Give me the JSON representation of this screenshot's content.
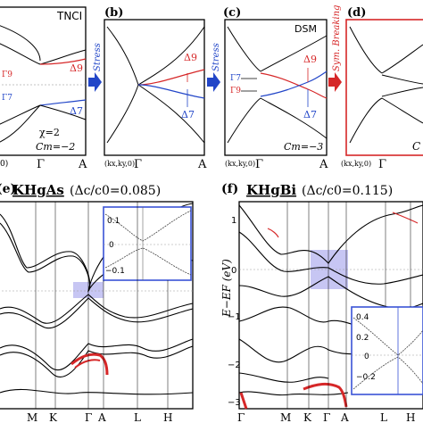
{
  "colors": {
    "red": "#d62728",
    "blue": "#2246c8",
    "box_fill": "#b9b8f0",
    "inset": "#3a53d6"
  },
  "top": {
    "panel_a": {
      "tag": "TNCI",
      "chi": "χ=2",
      "cm": "Cm=−2",
      "d9": "Δ9",
      "d7": "Δ7",
      "gamma9": "Γ9",
      "gamma7": "Γ7",
      "x_gamma": "Γ",
      "x_a": "A",
      "x_k": "0)"
    },
    "arrow_1": "Stress",
    "panel_b": {
      "label": "(b)",
      "d9": "Δ9",
      "d7": "Δ7",
      "x_k": "(kx,ky,0)",
      "x_gamma": "Γ",
      "x_a": "A"
    },
    "arrow_2": "Stress",
    "panel_c": {
      "label": "(c)",
      "tag": "DSM",
      "d9": "Δ9",
      "d7": "Δ7",
      "g7": "Γ7",
      "g9": "Γ9",
      "cm": "Cm=−3",
      "x_k": "(kx,ky,0)",
      "x_gamma": "Γ",
      "x_a": "A"
    },
    "arrow_3": "Sym. Breaking",
    "panel_d": {
      "label": "(d)",
      "x_k": "(kx,ky,0)",
      "x_gamma": "Γ",
      "c_text": "C"
    }
  },
  "bottom": {
    "panel_e": {
      "title": "KHgAs (Δc/c0=0.085)",
      "title_name": "KHgAs",
      "title_ratio": "(Δc/c0=0.085)",
      "label": "(e)",
      "inset_ticks": [
        "0.1",
        "0",
        "−0.1"
      ],
      "x_ticks": [
        "M",
        "K",
        "Γ",
        "A",
        "L",
        "H"
      ]
    },
    "panel_f": {
      "title": "KHgBi (Δc/c0=0.115)",
      "title_name": "KHgBi",
      "title_ratio": "(Δc/c0=0.115)",
      "label": "(f)",
      "ylabel": "E−EF (eV)",
      "y_ticks": [
        "1",
        "0",
        "−1",
        "−2",
        "−3"
      ],
      "inset_ticks": [
        "0.4",
        "0.2",
        "0",
        "−0.2"
      ],
      "x_ticks": [
        "Γ",
        "M",
        "K",
        "Γ",
        "A",
        "L",
        "H"
      ]
    }
  }
}
